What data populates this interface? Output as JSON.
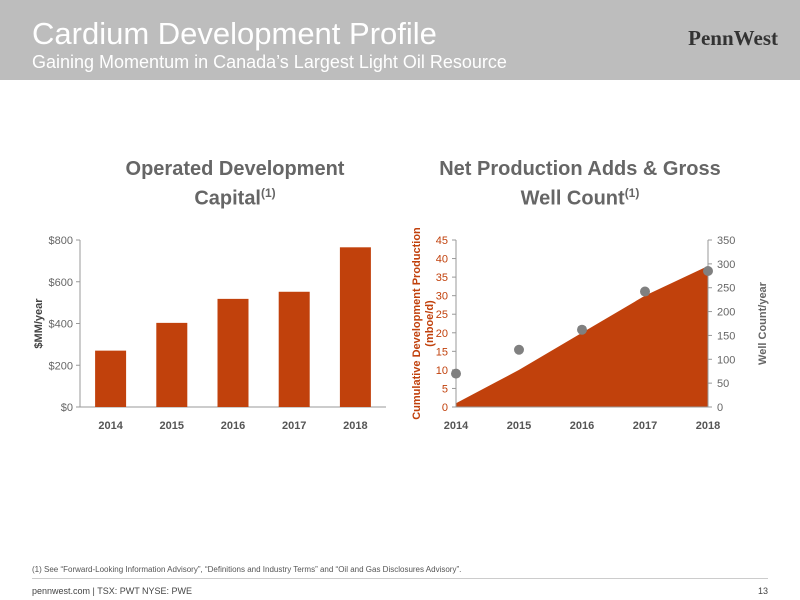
{
  "slide": {
    "title": "Cardium Development Profile",
    "subtitle": "Gaining Momentum in Canada’s Largest Light Oil Resource",
    "logo": "PennWest",
    "footnote": "(1) See “Forward-Looking Information Advisory”, “Definitions and Industry Terms” and “Oil and Gas Disclosures Advisory”.",
    "footer": "pennwest.com | TSX: PWT  NYSE: PWE",
    "page_number": "13"
  },
  "colors": {
    "accent": "#c1410c",
    "marker": "#808080",
    "header_bg": "#bdbdbd"
  },
  "chart_data": [
    {
      "type": "bar",
      "title": "Operated Development Capital",
      "title_sup": "(1)",
      "ylabel": "$MM/year",
      "categories": [
        "2014",
        "2015",
        "2016",
        "2017",
        "2018"
      ],
      "values": [
        270,
        403,
        518,
        552,
        765
      ],
      "ylim": [
        0,
        800
      ],
      "yticks": [
        0,
        200,
        400,
        600,
        800
      ],
      "ytick_labels": [
        "$0",
        "$200",
        "$400",
        "$600",
        "$800"
      ],
      "grid": false
    },
    {
      "type": "area",
      "title": "Net Production Adds & Gross Well Count",
      "title_sup": "(1)",
      "ylabel": "Cumulative Development Production (mboe/d)",
      "y2label": "Well Count/year",
      "categories": [
        "2014",
        "2015",
        "2016",
        "2017",
        "2018"
      ],
      "production": [
        1,
        10,
        20,
        30,
        38
      ],
      "well_count": [
        70,
        120,
        162,
        242,
        285
      ],
      "ylim": [
        0,
        45
      ],
      "yticks": [
        0,
        5,
        10,
        15,
        20,
        25,
        30,
        35,
        40,
        45
      ],
      "y2lim": [
        0,
        350
      ],
      "y2ticks": [
        0,
        50,
        100,
        150,
        200,
        250,
        300,
        350
      ],
      "grid": false
    }
  ]
}
